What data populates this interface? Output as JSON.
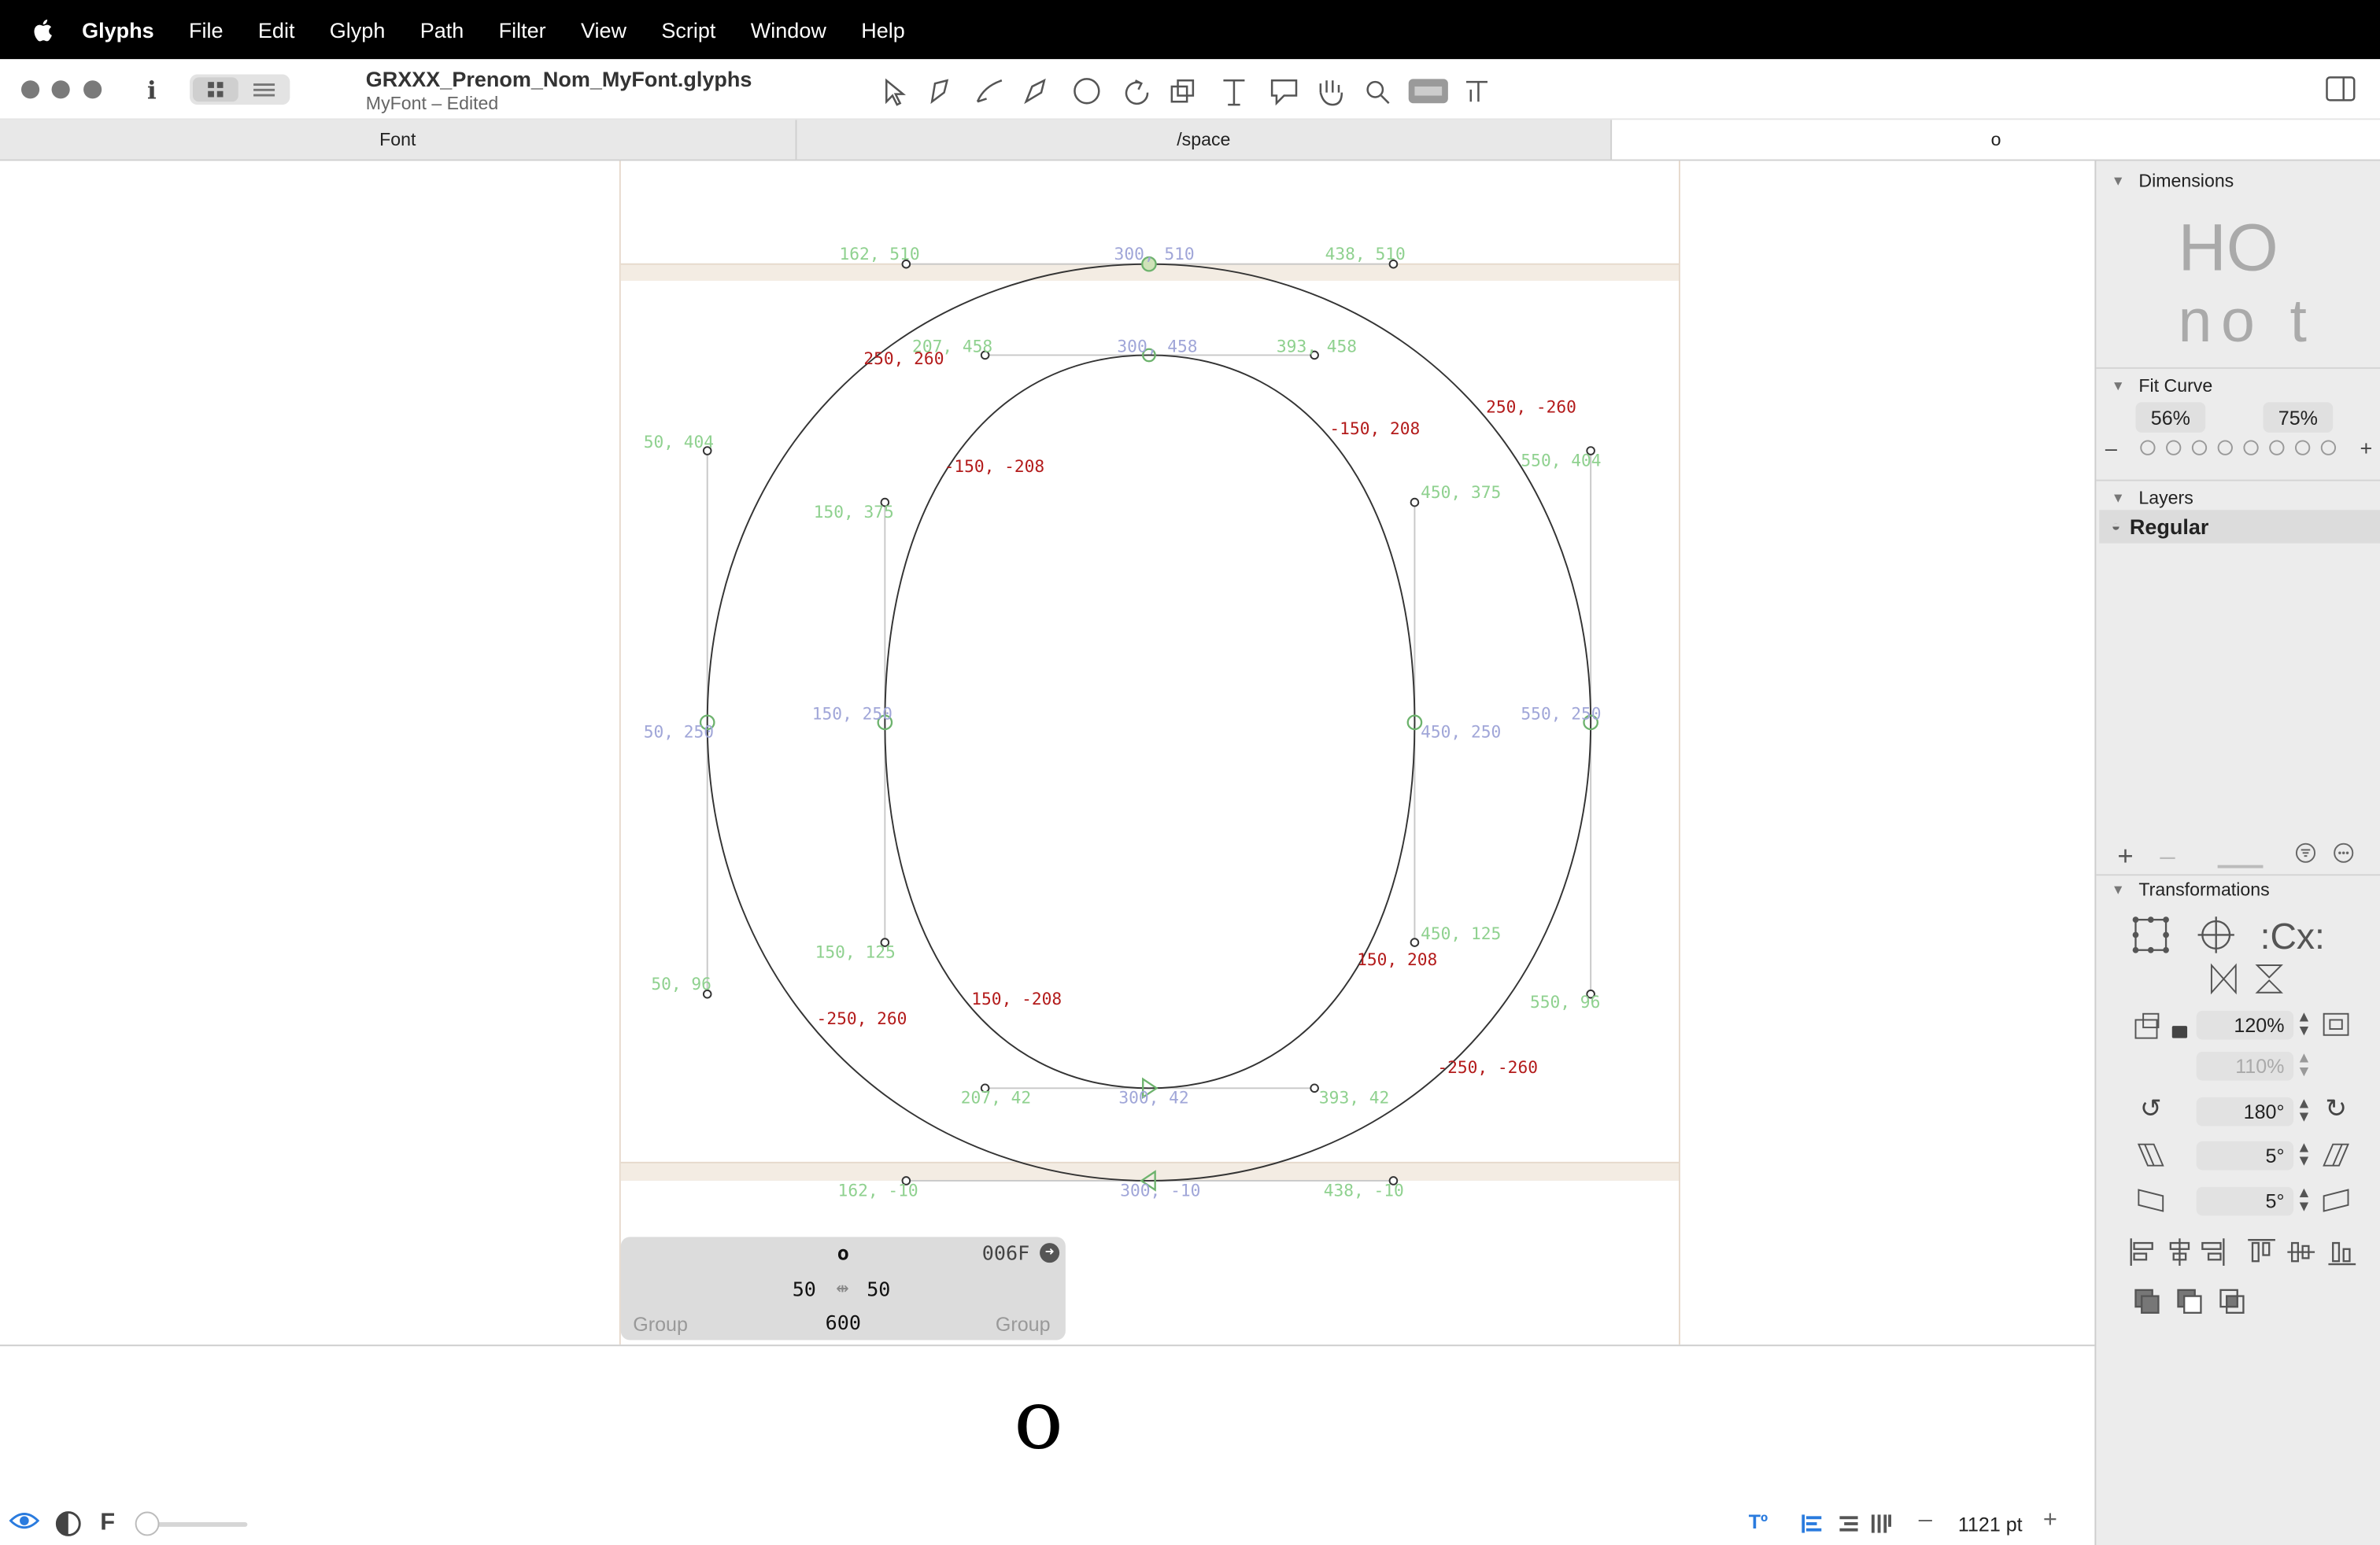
{
  "menubar": {
    "app": "Glyphs",
    "items": [
      "File",
      "Edit",
      "Glyph",
      "Path",
      "Filter",
      "View",
      "Script",
      "Window",
      "Help"
    ]
  },
  "window": {
    "title": "GRXXX_Prenom_Nom_MyFont.glyphs",
    "subtitle": "MyFont – Edited"
  },
  "tabs": [
    "Font",
    "/space",
    "o"
  ],
  "canvas": {
    "labels": {
      "top_left_handle": "162, 510",
      "top_node": "300, 510",
      "top_right_handle": "438, 510",
      "inner_top_left": "207, 458",
      "inner_top": "300, 458",
      "inner_top_right": "393, 458",
      "outer_left_upper": "50, 404",
      "outer_right_upper": "550, 404",
      "inner_left_upper": "150, 375",
      "inner_right_upper": "450, 375",
      "outer_left": "50, 250",
      "inner_left": "150, 250",
      "inner_right": "450, 250",
      "outer_right": "550, 250",
      "inner_left_lower": "150, 125",
      "inner_right_lower": "450, 125",
      "outer_left_lower": "50, 96",
      "outer_right_lower": "550, 96",
      "inner_bottom_left": "207, 42",
      "inner_bottom": "300, 42",
      "inner_bottom_right": "393, 42",
      "bottom_left_handle": "162, -10",
      "bottom_node": "300, -10",
      "bottom_right_handle": "438, -10"
    },
    "red_labels": {
      "r1": "250, 260",
      "r2": "250, -260",
      "r3": "-150, -208",
      "r4": "-150, 208",
      "r5": "150, -208",
      "r6": "150, 208",
      "r7": "-250, 260",
      "r8": "-250, -260"
    }
  },
  "infobox": {
    "glyph": "o",
    "unicode": "006F",
    "lsb": "50",
    "rsb": "50",
    "width": "600",
    "left_group": "Group",
    "right_group": "Group"
  },
  "preview": {
    "glyph": "o"
  },
  "sidebar": {
    "dimensions_title": "Dimensions",
    "dim_preview_top": "HO",
    "dim_preview_bottom": "no t",
    "fit_curve_title": "Fit Curve",
    "fit_min": "56%",
    "fit_max": "75%",
    "layers_title": "Layers",
    "layer_name": "Regular",
    "transformations_title": "Transformations",
    "scale_x": "120%",
    "scale_y": "110%",
    "rotate": "180°",
    "slant1": "5°",
    "slant2": "5°"
  },
  "statusbar": {
    "f_label": "F",
    "zoom": "1121 pt"
  },
  "colors": {
    "menubar": "#000000",
    "node_green": "#8fd18f",
    "node_blue": "#a0a6d8",
    "label_red": "#b31b1b",
    "metric_band": "#f3ece3",
    "accent": "#2a7bde"
  }
}
